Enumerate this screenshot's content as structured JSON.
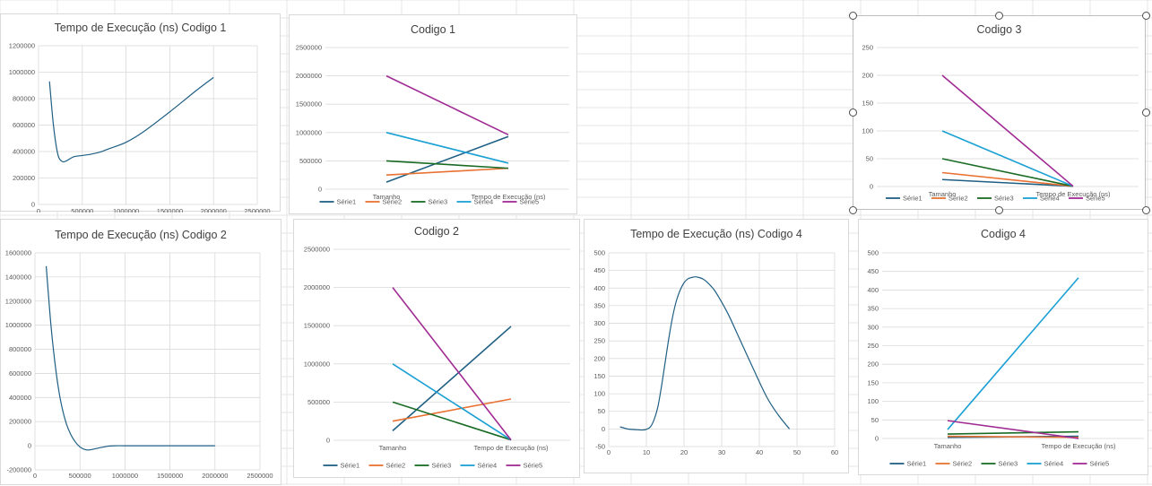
{
  "charts": [
    {
      "key": "c1",
      "title": "Tempo de Execução (ns)  Codigo 1",
      "chart_data": {
        "type": "scatter",
        "title": "Tempo de Execução (ns)  Codigo 1",
        "xlim": [
          0,
          2500000
        ],
        "ylim": [
          0,
          1200000
        ],
        "x_ticks": [
          0,
          500000,
          1000000,
          1500000,
          2000000,
          2500000
        ],
        "y_ticks": [
          0,
          200000,
          400000,
          600000,
          800000,
          1000000,
          1200000
        ],
        "x_tick_labels": [
          "0",
          "500000",
          "1000000",
          "1500000",
          "2000000",
          "2500000"
        ],
        "y_tick_labels": [
          "0",
          "200000",
          "400000",
          "600000",
          "800000",
          "1000000",
          "1200000"
        ],
        "grid": true,
        "series": [
          {
            "x": [
              125000,
              170000,
              220000,
              270000,
              320000,
              400000,
              500000,
              600000,
              700000,
              800000,
              1000000,
              1200000,
              1500000,
              1800000,
              2000000
            ],
            "y": [
              930000,
              600000,
              380000,
              325000,
              330000,
              360000,
              370000,
              380000,
              395000,
              420000,
              470000,
              550000,
              700000,
              860000,
              960000
            ]
          }
        ],
        "colors": [
          "#1f5f84"
        ]
      }
    },
    {
      "key": "c2",
      "title": "Codigo 1",
      "chart_data": {
        "type": "line",
        "title": "Codigo 1",
        "categories": [
          "Tamanho",
          "Tempo de Execução (ns)"
        ],
        "ylim": [
          0,
          2500000
        ],
        "y_ticks": [
          0,
          500000,
          1000000,
          1500000,
          2000000,
          2500000
        ],
        "y_tick_labels": [
          "0",
          "500000",
          "1000000",
          "1500000",
          "2000000",
          "2500000"
        ],
        "grid": true,
        "legend_position": "bottom",
        "series": [
          {
            "name": "Série1",
            "values": [
              125000,
              930000
            ]
          },
          {
            "name": "Série2",
            "values": [
              250000,
              370000
            ]
          },
          {
            "name": "Série3",
            "values": [
              500000,
              370000
            ]
          },
          {
            "name": "Série4",
            "values": [
              1000000,
              460000
            ]
          },
          {
            "name": "Série5",
            "values": [
              2000000,
              960000
            ]
          }
        ],
        "colors": [
          "#1f5f84",
          "#e97132",
          "#196b24",
          "#1aa0d4",
          "#a02b93"
        ]
      }
    },
    {
      "key": "c3",
      "title": "Codigo 3",
      "chart_data": {
        "type": "line",
        "title": "Codigo 3",
        "categories": [
          "Tamanho",
          "Tempo de Execução (ns)"
        ],
        "ylim": [
          0,
          250
        ],
        "y_ticks": [
          0,
          50,
          100,
          150,
          200,
          250
        ],
        "y_tick_labels": [
          "0",
          "50",
          "100",
          "150",
          "200",
          "250"
        ],
        "grid": true,
        "legend_position": "bottom",
        "series": [
          {
            "name": "Série1",
            "values": [
              12.5,
              0.5
            ]
          },
          {
            "name": "Série2",
            "values": [
              25,
              0.5
            ]
          },
          {
            "name": "Série3",
            "values": [
              50,
              0.5
            ]
          },
          {
            "name": "Série4",
            "values": [
              100,
              0.5
            ]
          },
          {
            "name": "Série5",
            "values": [
              200,
              0.5
            ]
          }
        ],
        "colors": [
          "#1f5f84",
          "#e97132",
          "#196b24",
          "#1aa0d4",
          "#a02b93"
        ]
      }
    },
    {
      "key": "c4",
      "title": "Tempo de Execução (ns) Codigo 2",
      "chart_data": {
        "type": "scatter",
        "title": "Tempo de Execução (ns) Codigo 2",
        "xlim": [
          0,
          2500000
        ],
        "ylim": [
          -200000,
          1600000
        ],
        "x_ticks": [
          0,
          500000,
          1000000,
          1500000,
          2000000,
          2500000
        ],
        "y_ticks": [
          -200000,
          0,
          200000,
          400000,
          600000,
          800000,
          1000000,
          1200000,
          1400000,
          1600000
        ],
        "x_tick_labels": [
          "0",
          "500000",
          "1000000",
          "1500000",
          "2000000",
          "2500000"
        ],
        "y_tick_labels": [
          "-200000",
          "0",
          "200000",
          "400000",
          "600000",
          "800000",
          "1000000",
          "1200000",
          "1400000",
          "1600000"
        ],
        "grid": true,
        "series": [
          {
            "x": [
              125000,
              150000,
              180000,
              220000,
              260000,
              300000,
              350000,
              400000,
              450000,
              500000,
              550000,
              600000,
              700000,
              800000,
              900000,
              1000000,
              1500000,
              2000000
            ],
            "y": [
              1490000,
              1250000,
              980000,
              700000,
              480000,
              320000,
              180000,
              90000,
              30000,
              -10000,
              -30000,
              -35000,
              -20000,
              -5000,
              0,
              0,
              0,
              0
            ]
          }
        ],
        "colors": [
          "#1f5f84"
        ]
      }
    },
    {
      "key": "c5",
      "title": "Codigo 2",
      "chart_data": {
        "type": "line",
        "title": "Codigo 2",
        "categories": [
          "Tamanho",
          "Tempo de Execução (ns)"
        ],
        "ylim": [
          0,
          2500000
        ],
        "y_ticks": [
          0,
          500000,
          1000000,
          1500000,
          2000000,
          2500000
        ],
        "y_tick_labels": [
          "0",
          "500000",
          "1000000",
          "1500000",
          "2000000",
          "2500000"
        ],
        "grid": true,
        "legend_position": "bottom",
        "series": [
          {
            "name": "Série1",
            "values": [
              125000,
              1490000
            ]
          },
          {
            "name": "Série2",
            "values": [
              250000,
              540000
            ]
          },
          {
            "name": "Série3",
            "values": [
              500000,
              5000
            ]
          },
          {
            "name": "Série4",
            "values": [
              1000000,
              5000
            ]
          },
          {
            "name": "Série5",
            "values": [
              2000000,
              5000
            ]
          }
        ],
        "colors": [
          "#1f5f84",
          "#e97132",
          "#196b24",
          "#1aa0d4",
          "#a02b93"
        ]
      }
    },
    {
      "key": "c6",
      "title": "Tempo de Execução (ns) Codigo 4",
      "chart_data": {
        "type": "scatter",
        "title": "Tempo de Execução (ns) Codigo 4",
        "xlim": [
          0,
          60
        ],
        "ylim": [
          -50,
          500
        ],
        "x_ticks": [
          0,
          10,
          20,
          30,
          40,
          50,
          60
        ],
        "y_ticks": [
          -50,
          0,
          50,
          100,
          150,
          200,
          250,
          300,
          350,
          400,
          450,
          500
        ],
        "x_tick_labels": [
          "0",
          "10",
          "20",
          "30",
          "40",
          "50",
          "60"
        ],
        "y_tick_labels": [
          "-50",
          "0",
          "50",
          "100",
          "150",
          "200",
          "250",
          "300",
          "350",
          "400",
          "450",
          "500"
        ],
        "grid": true,
        "series": [
          {
            "x": [
              3,
              5,
              7,
              9,
              10,
              11,
              12,
              13,
              14,
              15,
              16,
              17,
              18,
              19,
              20,
              21,
              22,
              23,
              24,
              25,
              26,
              28,
              30,
              32,
              35,
              38,
              42,
              45,
              48
            ],
            "y": [
              6,
              0,
              -2,
              -3,
              -1,
              5,
              25,
              60,
              120,
              190,
              260,
              320,
              365,
              395,
              415,
              426,
              430,
              432,
              430,
              426,
              418,
              395,
              360,
              320,
              250,
              180,
              90,
              40,
              0
            ]
          }
        ],
        "colors": [
          "#1f5f84"
        ]
      }
    },
    {
      "key": "c7",
      "title": "Codigo 4",
      "chart_data": {
        "type": "line",
        "title": "Codigo 4",
        "categories": [
          "Tamanho",
          "Tempo de Execução (ns)"
        ],
        "ylim": [
          0,
          500
        ],
        "y_ticks": [
          0,
          50,
          100,
          150,
          200,
          250,
          300,
          350,
          400,
          450,
          500
        ],
        "y_tick_labels": [
          "0",
          "50",
          "100",
          "150",
          "200",
          "250",
          "300",
          "350",
          "400",
          "450",
          "500"
        ],
        "grid": true,
        "legend_position": "bottom",
        "series": [
          {
            "name": "Série1",
            "values": [
              3,
              6
            ]
          },
          {
            "name": "Série2",
            "values": [
              6,
              3
            ]
          },
          {
            "name": "Série3",
            "values": [
              12,
              18
            ]
          },
          {
            "name": "Série4",
            "values": [
              24,
              433
            ]
          },
          {
            "name": "Série5",
            "values": [
              48,
              0
            ]
          }
        ],
        "colors": [
          "#1f5f84",
          "#e97132",
          "#196b24",
          "#1aa0d4",
          "#a02b93"
        ]
      }
    }
  ]
}
